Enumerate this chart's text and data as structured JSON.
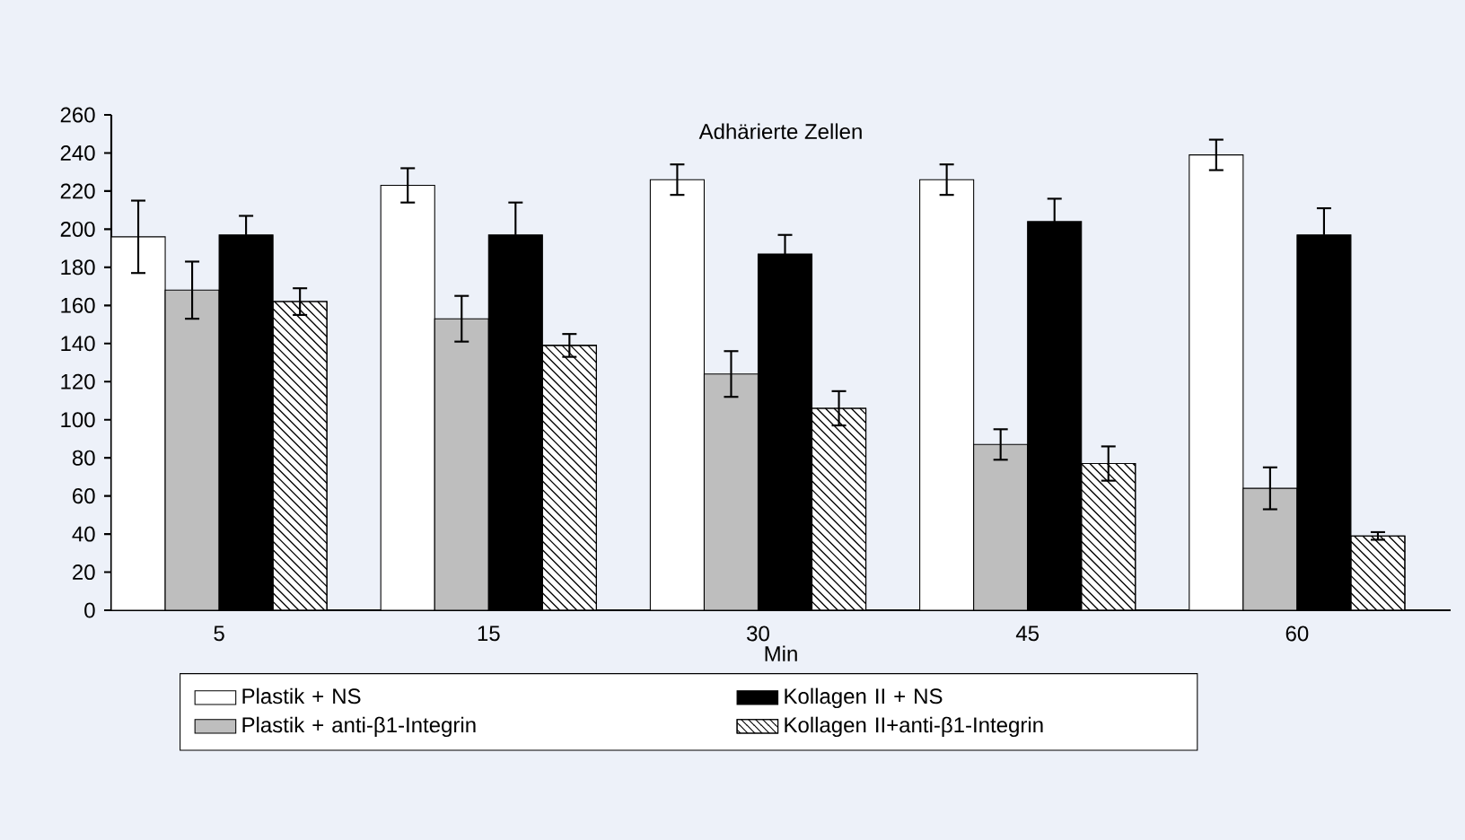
{
  "chart_data": {
    "type": "bar",
    "title": "Adhärierte Zellen",
    "xlabel": "Min",
    "categories": [
      "5",
      "15",
      "30",
      "45",
      "60"
    ],
    "series": [
      {
        "name": "Plastik + NS",
        "color": "#ffffff",
        "values": [
          196,
          223,
          226,
          226,
          239
        ],
        "errors": [
          19,
          9,
          8,
          8,
          8
        ]
      },
      {
        "name": "Plastik + anti-β1-Integrin",
        "color": "#bebebe",
        "values": [
          168,
          153,
          124,
          87,
          64
        ],
        "errors": [
          15,
          12,
          12,
          8,
          11
        ]
      },
      {
        "name": "Kollagen II + NS",
        "color": "#000000",
        "values": [
          197,
          197,
          187,
          204,
          197
        ],
        "errors": [
          10,
          17,
          10,
          12,
          14
        ]
      },
      {
        "name": "Kollagen II+anti-β1-Integrin",
        "color": "#ffffff",
        "values": [
          162,
          139,
          106,
          77,
          39
        ],
        "errors": [
          7,
          6,
          9,
          9,
          2
        ]
      }
    ],
    "ylim": [
      0,
      260
    ],
    "yticks": [
      0,
      20,
      40,
      60,
      80,
      100,
      120,
      140,
      160,
      180,
      200,
      220,
      240,
      260
    ],
    "grid": false,
    "legend": "bottom"
  }
}
